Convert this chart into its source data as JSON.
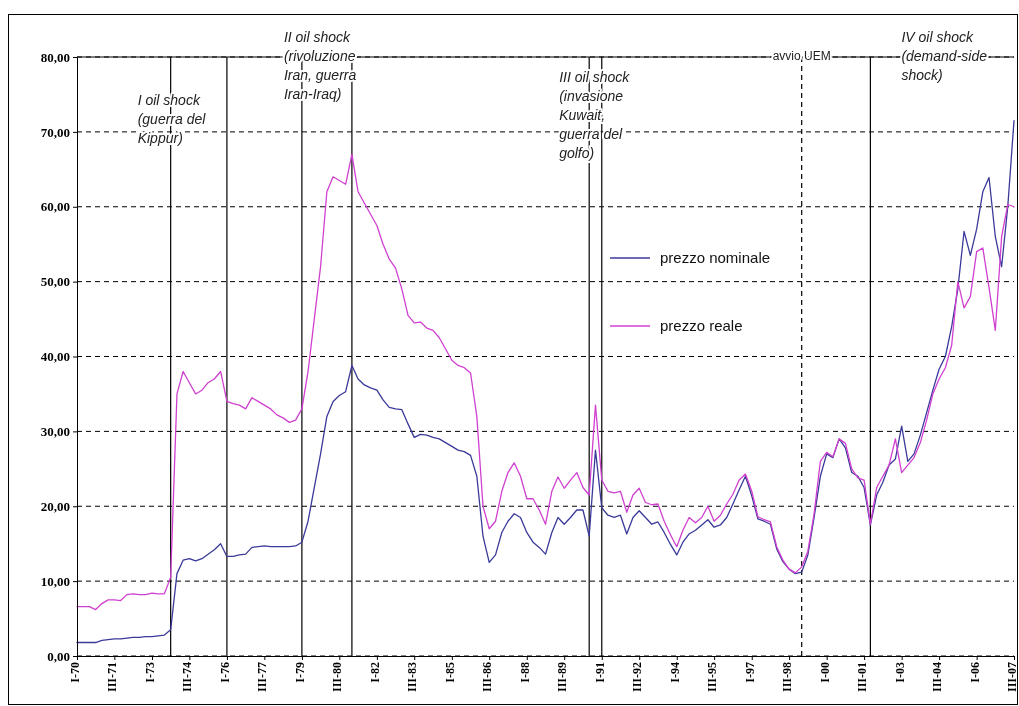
{
  "chart_data": {
    "type": "line",
    "x": [
      "1970-01",
      "1970-04",
      "1970-07",
      "1970-10",
      "1971-01",
      "1971-04",
      "1971-07",
      "1971-10",
      "1972-01",
      "1972-04",
      "1972-07",
      "1972-10",
      "1973-01",
      "1973-04",
      "1973-07",
      "1973-10",
      "1974-01",
      "1974-04",
      "1974-07",
      "1974-10",
      "1975-01",
      "1975-04",
      "1975-07",
      "1975-10",
      "1976-01",
      "1976-04",
      "1976-07",
      "1976-10",
      "1977-01",
      "1977-04",
      "1977-07",
      "1977-10",
      "1978-01",
      "1978-04",
      "1978-07",
      "1978-10",
      "1979-01",
      "1979-04",
      "1979-07",
      "1979-10",
      "1980-01",
      "1980-04",
      "1980-07",
      "1980-10",
      "1981-01",
      "1981-04",
      "1981-07",
      "1981-10",
      "1982-01",
      "1982-04",
      "1982-07",
      "1982-10",
      "1983-01",
      "1983-04",
      "1983-07",
      "1983-10",
      "1984-01",
      "1984-04",
      "1984-07",
      "1984-10",
      "1985-01",
      "1985-04",
      "1985-07",
      "1985-10",
      "1986-01",
      "1986-04",
      "1986-07",
      "1986-10",
      "1987-01",
      "1987-04",
      "1987-07",
      "1987-10",
      "1988-01",
      "1988-04",
      "1988-07",
      "1988-10",
      "1989-01",
      "1989-04",
      "1989-07",
      "1989-10",
      "1990-01",
      "1990-04",
      "1990-07",
      "1990-10",
      "1991-01",
      "1991-04",
      "1991-07",
      "1991-10",
      "1992-01",
      "1992-04",
      "1992-07",
      "1992-10",
      "1993-01",
      "1993-04",
      "1993-07",
      "1993-10",
      "1994-01",
      "1994-04",
      "1994-07",
      "1994-10",
      "1995-01",
      "1995-04",
      "1995-07",
      "1995-10",
      "1996-01",
      "1996-04",
      "1996-07",
      "1996-10",
      "1997-01",
      "1997-04",
      "1997-07",
      "1997-10",
      "1998-01",
      "1998-04",
      "1998-07",
      "1998-10",
      "1999-01",
      "1999-04",
      "1999-07",
      "1999-10",
      "2000-01",
      "2000-04",
      "2000-07",
      "2000-10",
      "2001-01",
      "2001-04",
      "2001-07",
      "2001-10",
      "2002-01",
      "2002-04",
      "2002-07",
      "2002-10",
      "2003-01",
      "2003-04",
      "2003-07",
      "2003-10",
      "2004-01",
      "2004-04",
      "2004-07",
      "2004-10",
      "2005-01",
      "2005-04",
      "2005-07",
      "2005-10",
      "2006-01",
      "2006-04",
      "2006-07",
      "2006-10",
      "2007-01",
      "2007-04",
      "2007-07"
    ],
    "series": [
      {
        "name": "prezzo nominale",
        "color": "#3a3a9a",
        "values": [
          1.8,
          1.8,
          1.8,
          1.8,
          2.1,
          2.2,
          2.3,
          2.3,
          2.4,
          2.5,
          2.5,
          2.6,
          2.6,
          2.7,
          2.8,
          3.5,
          11,
          12.8,
          13,
          12.7,
          13,
          13.6,
          14.2,
          15,
          13.3,
          13.3,
          13.5,
          13.6,
          14.5,
          14.6,
          14.7,
          14.6,
          14.6,
          14.6,
          14.6,
          14.7,
          15.2,
          18,
          22.5,
          27,
          32,
          34,
          34.8,
          35.3,
          38.8,
          37,
          36.2,
          35.8,
          35.5,
          34.2,
          33.2,
          33,
          32.9,
          31,
          29.2,
          29.6,
          29.5,
          29.2,
          29,
          28.5,
          28,
          27.5,
          27.3,
          26.8,
          24,
          16,
          12.5,
          13.5,
          16.5,
          18,
          19,
          18.5,
          16.5,
          15.2,
          14.5,
          13.6,
          16.5,
          18.5,
          17.6,
          18.5,
          19.5,
          19.5,
          16,
          27.5,
          19.8,
          18.8,
          18.5,
          18.8,
          16.3,
          18.5,
          19.4,
          18.5,
          17.6,
          17.9,
          16.5,
          14.9,
          13.5,
          15.2,
          16.3,
          16.8,
          17.5,
          18.2,
          17.2,
          17.5,
          18.5,
          20.3,
          22.2,
          24,
          21.4,
          18.3,
          18,
          17.6,
          14.3,
          12.6,
          11.6,
          11,
          11.2,
          13.5,
          18.5,
          24,
          27,
          26.5,
          29,
          27.8,
          24.5,
          24,
          22.5,
          17.5,
          21.5,
          23.2,
          25.5,
          26.3,
          30.7,
          26,
          27,
          29.5,
          32.5,
          35.5,
          38.3,
          40,
          44,
          49,
          56.7,
          53.5,
          57,
          62,
          63.9,
          56,
          52,
          60,
          71.5
        ]
      },
      {
        "name": "prezzo reale",
        "color": "#d040d0",
        "values": [
          6.6,
          6.6,
          6.6,
          6.2,
          7,
          7.5,
          7.5,
          7.4,
          8.2,
          8.3,
          8.2,
          8.2,
          8.4,
          8.3,
          8.3,
          10.5,
          35,
          38,
          36.5,
          35,
          35.5,
          36.5,
          37,
          38,
          34,
          33.7,
          33.5,
          33,
          34.5,
          34,
          33.5,
          33,
          32.2,
          31.8,
          31.2,
          31.5,
          33,
          38,
          45,
          52,
          62,
          64,
          63.5,
          63,
          67,
          62,
          60.5,
          59,
          57.5,
          55,
          53,
          51.8,
          49,
          45.5,
          44.5,
          44.6,
          43.8,
          43.5,
          42.5,
          41,
          39.5,
          38.8,
          38.5,
          37.8,
          32,
          20,
          17,
          18,
          22,
          24.5,
          25.8,
          24,
          21,
          21,
          19.5,
          17.6,
          22,
          23.9,
          22.4,
          23.5,
          24.5,
          22.5,
          21.5,
          33.5,
          23.5,
          22,
          21.8,
          22,
          19.2,
          21.5,
          22.4,
          20.5,
          20.2,
          20.3,
          18,
          16.2,
          14.6,
          16.8,
          18.5,
          17.8,
          18.5,
          20,
          18,
          18.8,
          20.3,
          21.6,
          23.5,
          24.3,
          22,
          18.6,
          18.2,
          17.9,
          14.6,
          12.8,
          11.6,
          11.1,
          11.9,
          14,
          19,
          26,
          27.2,
          26.6,
          29,
          28.4,
          25,
          23.8,
          23.5,
          17.6,
          22.5,
          24,
          25.5,
          29,
          24.5,
          25.5,
          26.5,
          28.5,
          31.5,
          35,
          37,
          38.5,
          41.5,
          50,
          46.5,
          48,
          54,
          54.5,
          49.2,
          43.5,
          56,
          60.3,
          60
        ]
      }
    ],
    "xlim": [
      "1970-01",
      "2007-07"
    ],
    "xticks": [
      {
        "value": "1970-01",
        "label": "I-70"
      },
      {
        "value": "1971-07",
        "label": "III-71"
      },
      {
        "value": "1973-01",
        "label": "I-73"
      },
      {
        "value": "1974-07",
        "label": "III-74"
      },
      {
        "value": "1976-01",
        "label": "I-76"
      },
      {
        "value": "1977-07",
        "label": "III-77"
      },
      {
        "value": "1979-01",
        "label": "I-79"
      },
      {
        "value": "1980-07",
        "label": "III-80"
      },
      {
        "value": "1982-01",
        "label": "I-82"
      },
      {
        "value": "1983-07",
        "label": "III-83"
      },
      {
        "value": "1985-01",
        "label": "I-85"
      },
      {
        "value": "1986-07",
        "label": "III-86"
      },
      {
        "value": "1988-01",
        "label": "I-88"
      },
      {
        "value": "1989-07",
        "label": "III-89"
      },
      {
        "value": "1991-01",
        "label": "I-91"
      },
      {
        "value": "1992-07",
        "label": "III-92"
      },
      {
        "value": "1994-01",
        "label": "I-94"
      },
      {
        "value": "1995-07",
        "label": "III-95"
      },
      {
        "value": "1997-01",
        "label": "I-97"
      },
      {
        "value": "1998-07",
        "label": "III-98"
      },
      {
        "value": "2000-01",
        "label": "I-00"
      },
      {
        "value": "2001-07",
        "label": "III-01"
      },
      {
        "value": "2003-01",
        "label": "I-03"
      },
      {
        "value": "2004-07",
        "label": "III-04"
      },
      {
        "value": "2006-01",
        "label": "I-06"
      },
      {
        "value": "2007-07",
        "label": "III-07"
      }
    ],
    "ylim": [
      0,
      80
    ],
    "yticks": [
      {
        "value": 0,
        "label": "0,00"
      },
      {
        "value": 10,
        "label": "10,00"
      },
      {
        "value": 20,
        "label": "20,00"
      },
      {
        "value": 30,
        "label": "30,00"
      },
      {
        "value": 40,
        "label": "40,00"
      },
      {
        "value": 50,
        "label": "50,00"
      },
      {
        "value": 60,
        "label": "60,00"
      },
      {
        "value": 70,
        "label": "70,00"
      },
      {
        "value": 80,
        "label": "80,00"
      }
    ],
    "grid": "y",
    "legend": "right",
    "marker": "none",
    "line_style": "solid",
    "ref_lines": [
      {
        "axis": "x",
        "value": "1973-10",
        "label": "I oil shock\n(guerra del\nKippur)",
        "color": "#000000",
        "line_style": "solid"
      },
      {
        "axis": "x",
        "value": "1976-01",
        "color": "#000000",
        "line_style": "solid"
      },
      {
        "axis": "x",
        "value": "1979-01",
        "label": "II oil shock\n(rivoluzione\nIran, guerra\nIran-Iraq)",
        "color": "#000000",
        "line_style": "solid"
      },
      {
        "axis": "x",
        "value": "1981-01",
        "color": "#000000",
        "line_style": "solid"
      },
      {
        "axis": "x",
        "value": "1990-07",
        "label": "III oil shock\n(invasione\nKuwait,\nguerra del\ngolfo)",
        "color": "#000000",
        "line_style": "solid"
      },
      {
        "axis": "x",
        "value": "1991-01",
        "color": "#000000",
        "line_style": "solid"
      },
      {
        "axis": "x",
        "value": "1999-01",
        "label": "avvio UEM",
        "color": "#000000",
        "line_style": "dashed"
      },
      {
        "axis": "x",
        "value": "2001-10",
        "label": "IV oil shock\n(demand-side\nshock)",
        "color": "#000000",
        "line_style": "solid"
      }
    ]
  }
}
